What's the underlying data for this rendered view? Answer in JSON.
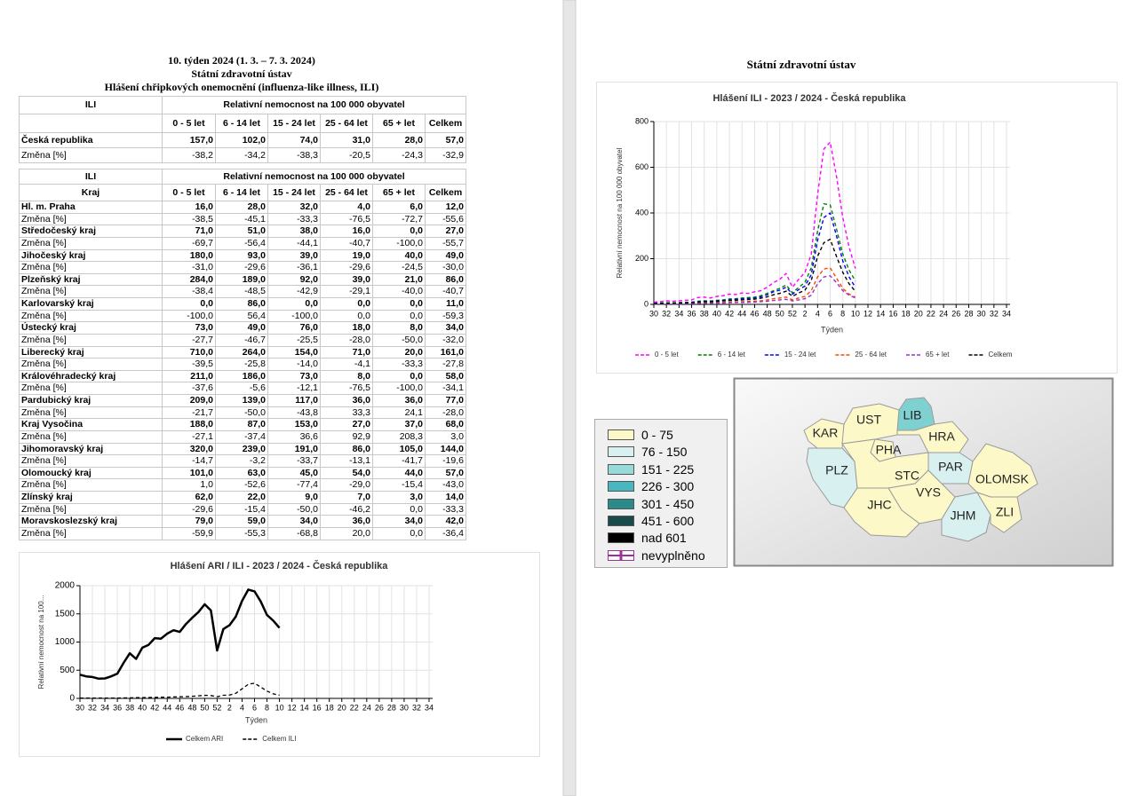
{
  "header": {
    "week": "10. týden 2024 (1. 3. – 7. 3. 2024)",
    "org": "Státní zdravotní ústav",
    "subtitle": "Hlášení chřipkových onemocnění (influenza-like illness, ILI)"
  },
  "table1": {
    "header": [
      "ILI",
      "Relativní nemocnost na 100 000 obyvatel"
    ],
    "columns": [
      "0 - 5 let",
      "6 - 14 let",
      "15 - 24 let",
      "25 - 64 let",
      "65 + let",
      "Celkem"
    ],
    "rows": [
      [
        "Česká republika",
        "157,0",
        "102,0",
        "74,0",
        "31,0",
        "28,0",
        "57,0"
      ],
      [
        "Změna [%]",
        "-38,2",
        "-34,2",
        "-38,3",
        "-20,5",
        "-24,3",
        "-32,9"
      ]
    ]
  },
  "table2": {
    "header": [
      "ILI",
      "Relativní nemocnost na 100 000 obyvatel"
    ],
    "columns": [
      "Kraj",
      "0 - 5 let",
      "6 - 14 let",
      "15 - 24 let",
      "25 - 64 let",
      "65 + let",
      "Celkem"
    ],
    "rows": [
      [
        "Hl. m. Praha",
        "16,0",
        "28,0",
        "32,0",
        "4,0",
        "6,0",
        "12,0"
      ],
      [
        "Změna [%]",
        "-38,5",
        "-45,1",
        "-33,3",
        "-76,5",
        "-72,7",
        "-55,6"
      ],
      [
        "Středočeský kraj",
        "71,0",
        "51,0",
        "38,0",
        "16,0",
        "0,0",
        "27,0"
      ],
      [
        "Změna [%]",
        "-69,7",
        "-56,4",
        "-44,1",
        "-40,7",
        "-100,0",
        "-55,7"
      ],
      [
        "Jihočeský kraj",
        "180,0",
        "93,0",
        "39,0",
        "19,0",
        "40,0",
        "49,0"
      ],
      [
        "Změna [%]",
        "-31,0",
        "-29,6",
        "-36,1",
        "-29,6",
        "-24,5",
        "-30,0"
      ],
      [
        "Plzeňský kraj",
        "284,0",
        "189,0",
        "92,0",
        "39,0",
        "21,0",
        "86,0"
      ],
      [
        "Změna [%]",
        "-38,4",
        "-48,5",
        "-42,9",
        "-29,1",
        "-40,0",
        "-40,7"
      ],
      [
        "Karlovarský kraj",
        "0,0",
        "86,0",
        "0,0",
        "0,0",
        "0,0",
        "11,0"
      ],
      [
        "Změna [%]",
        "-100,0",
        "56,4",
        "-100,0",
        "0,0",
        "0,0",
        "-59,3"
      ],
      [
        "Ústecký kraj",
        "73,0",
        "49,0",
        "76,0",
        "18,0",
        "8,0",
        "34,0"
      ],
      [
        "Změna [%]",
        "-27,7",
        "-46,7",
        "-25,5",
        "-28,0",
        "-50,0",
        "-32,0"
      ],
      [
        "Liberecký kraj",
        "710,0",
        "264,0",
        "154,0",
        "71,0",
        "20,0",
        "161,0"
      ],
      [
        "Změna [%]",
        "-39,5",
        "-25,8",
        "-14,0",
        "-4,1",
        "-33,3",
        "-27,8"
      ],
      [
        "Královéhradecký kraj",
        "211,0",
        "186,0",
        "73,0",
        "8,0",
        "0,0",
        "58,0"
      ],
      [
        "Změna [%]",
        "-37,6",
        "-5,6",
        "-12,1",
        "-76,5",
        "-100,0",
        "-34,1"
      ],
      [
        "Pardubický kraj",
        "209,0",
        "139,0",
        "117,0",
        "36,0",
        "36,0",
        "77,0"
      ],
      [
        "Změna [%]",
        "-21,7",
        "-50,0",
        "-43,8",
        "33,3",
        "24,1",
        "-28,0"
      ],
      [
        "Kraj Vysočina",
        "188,0",
        "87,0",
        "153,0",
        "27,0",
        "37,0",
        "68,0"
      ],
      [
        "Změna [%]",
        "-27,1",
        "-37,4",
        "36,6",
        "92,9",
        "208,3",
        "3,0"
      ],
      [
        "Jihomoravský kraj",
        "320,0",
        "239,0",
        "191,0",
        "86,0",
        "105,0",
        "144,0"
      ],
      [
        "Změna [%]",
        "-14,7",
        "-3,2",
        "-33,7",
        "-13,1",
        "-41,7",
        "-19,6"
      ],
      [
        "Olomoucký kraj",
        "101,0",
        "63,0",
        "45,0",
        "54,0",
        "44,0",
        "57,0"
      ],
      [
        "Změna [%]",
        "1,0",
        "-52,6",
        "-77,4",
        "-29,0",
        "-15,4",
        "-43,0"
      ],
      [
        "Zlínský kraj",
        "62,0",
        "22,0",
        "9,0",
        "7,0",
        "3,0",
        "14,0"
      ],
      [
        "Změna [%]",
        "-29,6",
        "-15,4",
        "-50,0",
        "-46,2",
        "0,0",
        "-33,3"
      ],
      [
        "Moravskoslezský kraj",
        "79,0",
        "59,0",
        "34,0",
        "36,0",
        "34,0",
        "42,0"
      ],
      [
        "Změna [%]",
        "-59,9",
        "-55,3",
        "-68,8",
        "20,0",
        "0,0",
        "-36,4"
      ]
    ]
  },
  "chart_data": [
    {
      "type": "line",
      "title": "Hlášení ARI / ILI - 2023 / 2024 - Česká republika",
      "x_label": "Týden",
      "y_label": "Relativní nemocnost na 100...",
      "categories": [
        30,
        null,
        32,
        null,
        34,
        null,
        36,
        null,
        38,
        null,
        40,
        null,
        42,
        null,
        44,
        null,
        46,
        null,
        48,
        null,
        50,
        null,
        52,
        null,
        2,
        null,
        4,
        null,
        6,
        null,
        8,
        null,
        10,
        null,
        12,
        null,
        14,
        null,
        16,
        null,
        18,
        null,
        20,
        null,
        22,
        null,
        24,
        null,
        26,
        null,
        28,
        null,
        30,
        null,
        32,
        null,
        34
      ],
      "ylim": [
        0,
        2000
      ],
      "yticks": [
        0,
        500,
        1000,
        1500,
        2000
      ],
      "grid": true,
      "series": [
        {
          "name": "Celkem ARI",
          "color": "#000000",
          "dash": false,
          "values": [
            420,
            390,
            380,
            350,
            355,
            390,
            440,
            630,
            800,
            700,
            900,
            950,
            1070,
            1060,
            1150,
            1210,
            1180,
            1320,
            1430,
            1530,
            1670,
            1560,
            850,
            1230,
            1300,
            1450,
            1730,
            1930,
            1900,
            1720,
            1480,
            1380,
            1250,
            null,
            null,
            null,
            null,
            null,
            null,
            null,
            null,
            null,
            null,
            null,
            null,
            null,
            null,
            null,
            null,
            null,
            null,
            null,
            null,
            null,
            null,
            null,
            null
          ]
        },
        {
          "name": "Celkem ILI",
          "color": "#000000",
          "dash": true,
          "values": [
            5,
            5,
            5,
            5,
            5,
            6,
            6,
            8,
            10,
            12,
            14,
            16,
            18,
            20,
            22,
            25,
            28,
            32,
            38,
            45,
            55,
            50,
            30,
            55,
            60,
            90,
            170,
            250,
            270,
            200,
            130,
            80,
            57,
            null,
            null,
            null,
            null,
            null,
            null,
            null,
            null,
            null,
            null,
            null,
            null,
            null,
            null,
            null,
            null,
            null,
            null,
            null,
            null,
            null,
            null,
            null,
            null
          ]
        }
      ]
    },
    {
      "type": "line",
      "title": "Hlášení ILI - 2023 / 2024 - Česká republika",
      "x_label": "Týden",
      "y_label": "Relativní nemocnost na 100 000 obyvatel",
      "categories": [
        30,
        null,
        32,
        null,
        34,
        null,
        36,
        null,
        38,
        null,
        40,
        null,
        42,
        null,
        44,
        null,
        46,
        null,
        48,
        null,
        50,
        null,
        52,
        null,
        2,
        null,
        4,
        null,
        6,
        null,
        8,
        null,
        10,
        null,
        12,
        null,
        14,
        null,
        16,
        null,
        18,
        null,
        20,
        null,
        22,
        null,
        24,
        null,
        26,
        null,
        28,
        null,
        30,
        null,
        32,
        null,
        34
      ],
      "ylim": [
        0,
        800
      ],
      "yticks": [
        0,
        200,
        400,
        600,
        800
      ],
      "grid": true,
      "series": [
        {
          "name": "0 - 5 let",
          "color": "#ff00ff",
          "dash": true,
          "values": [
            10,
            12,
            15,
            14,
            16,
            18,
            20,
            30,
            32,
            28,
            35,
            38,
            45,
            43,
            50,
            48,
            55,
            60,
            75,
            95,
            110,
            135,
            75,
            110,
            140,
            220,
            480,
            680,
            710,
            560,
            380,
            250,
            157,
            null,
            null,
            null,
            null,
            null,
            null,
            null,
            null,
            null,
            null,
            null,
            null,
            null,
            null,
            null,
            null,
            null,
            null,
            null,
            null,
            null,
            null,
            null,
            null
          ]
        },
        {
          "name": "6 - 14 let",
          "color": "#008000",
          "dash": true,
          "values": [
            5,
            6,
            7,
            7,
            8,
            9,
            10,
            14,
            16,
            15,
            18,
            20,
            24,
            25,
            28,
            30,
            32,
            38,
            48,
            60,
            70,
            85,
            50,
            75,
            95,
            160,
            320,
            440,
            435,
            330,
            220,
            150,
            102,
            null,
            null,
            null,
            null,
            null,
            null,
            null,
            null,
            null,
            null,
            null,
            null,
            null,
            null,
            null,
            null,
            null,
            null,
            null,
            null,
            null,
            null,
            null,
            null
          ]
        },
        {
          "name": "15 - 24 let",
          "color": "#0000ff",
          "dash": true,
          "values": [
            4,
            5,
            5,
            6,
            6,
            7,
            8,
            11,
            13,
            12,
            15,
            17,
            20,
            22,
            24,
            26,
            28,
            33,
            42,
            55,
            62,
            75,
            45,
            65,
            80,
            130,
            280,
            380,
            400,
            300,
            190,
            120,
            74,
            null,
            null,
            null,
            null,
            null,
            null,
            null,
            null,
            null,
            null,
            null,
            null,
            null,
            null,
            null,
            null,
            null,
            null,
            null,
            null,
            null,
            null,
            null,
            null
          ]
        },
        {
          "name": "25 - 64 let",
          "color": "#ff4500",
          "dash": true,
          "values": [
            2,
            2,
            3,
            3,
            3,
            4,
            4,
            6,
            7,
            7,
            8,
            9,
            10,
            11,
            12,
            13,
            14,
            16,
            20,
            25,
            28,
            32,
            20,
            28,
            35,
            60,
            120,
            155,
            160,
            115,
            70,
            45,
            31,
            null,
            null,
            null,
            null,
            null,
            null,
            null,
            null,
            null,
            null,
            null,
            null,
            null,
            null,
            null,
            null,
            null,
            null,
            null,
            null,
            null,
            null,
            null,
            null
          ]
        },
        {
          "name": "65 + let",
          "color": "#9933cc",
          "dash": true,
          "values": [
            1,
            1,
            2,
            2,
            2,
            2,
            3,
            4,
            5,
            5,
            6,
            6,
            7,
            8,
            8,
            9,
            10,
            12,
            14,
            17,
            20,
            22,
            15,
            20,
            25,
            40,
            90,
            120,
            125,
            95,
            60,
            40,
            28,
            null,
            null,
            null,
            null,
            null,
            null,
            null,
            null,
            null,
            null,
            null,
            null,
            null,
            null,
            null,
            null,
            null,
            null,
            null,
            null,
            null,
            null,
            null,
            null
          ]
        },
        {
          "name": "Celkem",
          "color": "#000000",
          "dash": true,
          "values": [
            4,
            4,
            5,
            5,
            6,
            6,
            7,
            10,
            12,
            11,
            13,
            15,
            17,
            18,
            20,
            21,
            23,
            27,
            33,
            42,
            48,
            58,
            35,
            50,
            62,
            105,
            210,
            270,
            285,
            210,
            140,
            90,
            57,
            null,
            null,
            null,
            null,
            null,
            null,
            null,
            null,
            null,
            null,
            null,
            null,
            null,
            null,
            null,
            null,
            null,
            null,
            null,
            null,
            null,
            null,
            null,
            null
          ]
        }
      ]
    }
  ],
  "right_header": "Státní zdravotní ústav",
  "map": {
    "legend": [
      {
        "label": "0 - 75",
        "color": "#fdf8c8"
      },
      {
        "label": "76 - 150",
        "color": "#d8f0f0"
      },
      {
        "label": "151 - 225",
        "color": "#98dada"
      },
      {
        "label": "226 - 300",
        "color": "#48b8c0"
      },
      {
        "label": "301 - 450",
        "color": "#2a8a8a"
      },
      {
        "label": "451 - 600",
        "color": "#1a4a4a"
      },
      {
        "label": "nad 601",
        "color": "#000000"
      },
      {
        "label": "nevyplněno",
        "color": "#ffffff",
        "hatch": "#993399"
      }
    ],
    "regions": [
      {
        "label": "KAR",
        "color": "#fdf8c8"
      },
      {
        "label": "UST",
        "color": "#fdf8c8"
      },
      {
        "label": "LIB",
        "color": "#7fd0d0"
      },
      {
        "label": "HRA",
        "color": "#fdf8c8"
      },
      {
        "label": "PLZ",
        "color": "#d8f0f0"
      },
      {
        "label": "STC",
        "color": "#fdf8c8"
      },
      {
        "label": "PHA",
        "color": "#fdf8c8"
      },
      {
        "label": "PAR",
        "color": "#d8f0f0"
      },
      {
        "label": "VYS",
        "color": "#fdf8c8"
      },
      {
        "label": "JHC",
        "color": "#fdf8c8"
      },
      {
        "label": "JHM",
        "color": "#d8f0f0"
      },
      {
        "label": "OLOMSK",
        "color": "#fdf8c8"
      },
      {
        "label": "ZLI",
        "color": "#fdf8c8"
      }
    ]
  }
}
